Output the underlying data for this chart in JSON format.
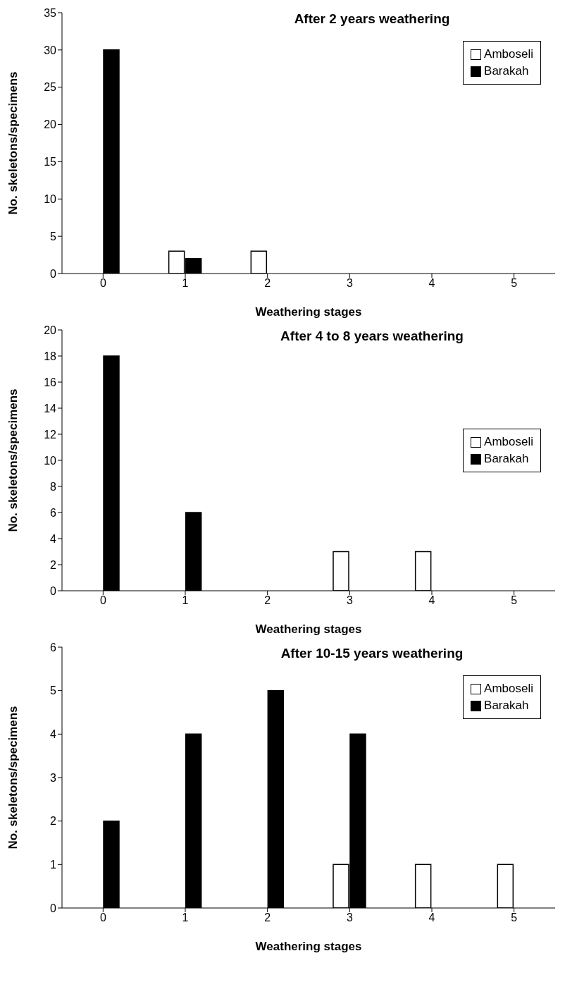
{
  "chart_data": [
    {
      "type": "bar",
      "title": "After 2 years weathering",
      "xlabel": "Weathering stages",
      "ylabel": "No. skeletons/specimens",
      "categories": [
        "0",
        "1",
        "2",
        "3",
        "4",
        "5"
      ],
      "series": [
        {
          "name": "Amboseli",
          "color": "#ffffff",
          "values": [
            0,
            3,
            3,
            0,
            0,
            0
          ]
        },
        {
          "name": "Barakah",
          "color": "#000000",
          "values": [
            30,
            2,
            0,
            0,
            0,
            0
          ]
        }
      ],
      "ylim": [
        0,
        35
      ],
      "yticks": [
        0,
        5,
        10,
        15,
        20,
        25,
        30,
        35
      ],
      "legend": "top right"
    },
    {
      "type": "bar",
      "title": "After 4 to 8 years weathering",
      "xlabel": "Weathering stages",
      "ylabel": "No. skeletons/specimens",
      "categories": [
        "0",
        "1",
        "2",
        "3",
        "4",
        "5"
      ],
      "series": [
        {
          "name": "Amboseli",
          "color": "#ffffff",
          "values": [
            0,
            0,
            0,
            3,
            3,
            0
          ]
        },
        {
          "name": "Barakah",
          "color": "#000000",
          "values": [
            18,
            6,
            0,
            0,
            0,
            0
          ]
        }
      ],
      "ylim": [
        0,
        20
      ],
      "yticks": [
        0,
        2,
        4,
        6,
        8,
        10,
        12,
        14,
        16,
        18,
        20
      ],
      "legend": "right"
    },
    {
      "type": "bar",
      "title": "After 10-15 years weathering",
      "xlabel": "Weathering stages",
      "ylabel": "No. skeletons/specimens",
      "categories": [
        "0",
        "1",
        "2",
        "3",
        "4",
        "5"
      ],
      "series": [
        {
          "name": "Amboseli",
          "color": "#ffffff",
          "values": [
            0,
            0,
            0,
            1,
            1,
            1
          ]
        },
        {
          "name": "Barakah",
          "color": "#000000",
          "values": [
            2,
            4,
            5,
            4,
            0,
            0
          ]
        }
      ],
      "ylim": [
        0,
        6
      ],
      "yticks": [
        0,
        1,
        2,
        3,
        4,
        5,
        6
      ],
      "legend": "top right"
    }
  ]
}
